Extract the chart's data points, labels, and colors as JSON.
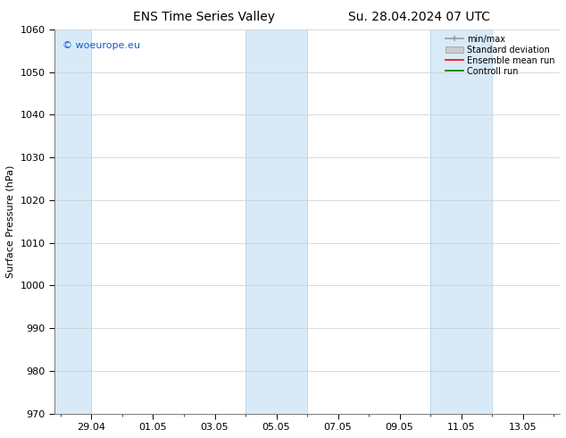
{
  "title_left": "ENS Time Series Valley",
  "title_right": "Su. 28.04.2024 07 UTC",
  "ylabel": "Surface Pressure (hPa)",
  "ylim": [
    970,
    1060
  ],
  "yticks": [
    970,
    980,
    990,
    1000,
    1010,
    1020,
    1030,
    1040,
    1050,
    1060
  ],
  "xtick_labels": [
    "29.04",
    "01.05",
    "03.05",
    "05.05",
    "07.05",
    "09.05",
    "11.05",
    "13.05"
  ],
  "xtick_positions": [
    1,
    3,
    5,
    7,
    9,
    11,
    13,
    15
  ],
  "xlim": [
    -0.2,
    16.2
  ],
  "shaded_bands": [
    {
      "x_start": -0.2,
      "x_end": 1.0,
      "color": "#d8eaf8"
    },
    {
      "x_start": 6.0,
      "x_end": 8.0,
      "color": "#d8eaf8"
    },
    {
      "x_start": 12.0,
      "x_end": 14.0,
      "color": "#d8eaf8"
    }
  ],
  "watermark": "© woeurope.eu",
  "watermark_color": "#1a5dc8",
  "legend_labels": [
    "min/max",
    "Standard deviation",
    "Ensemble mean run",
    "Controll run"
  ],
  "legend_line_color": "#999999",
  "legend_patch_color": "#cccccc",
  "legend_red": "#ff0000",
  "legend_green": "#007700",
  "bg_color": "#ffffff",
  "plot_bg_color": "#ffffff",
  "grid_color": "#cccccc",
  "tick_color": "#000000",
  "spine_color": "#666666",
  "font_size": 8,
  "title_font_size": 10,
  "ylabel_font_size": 8
}
